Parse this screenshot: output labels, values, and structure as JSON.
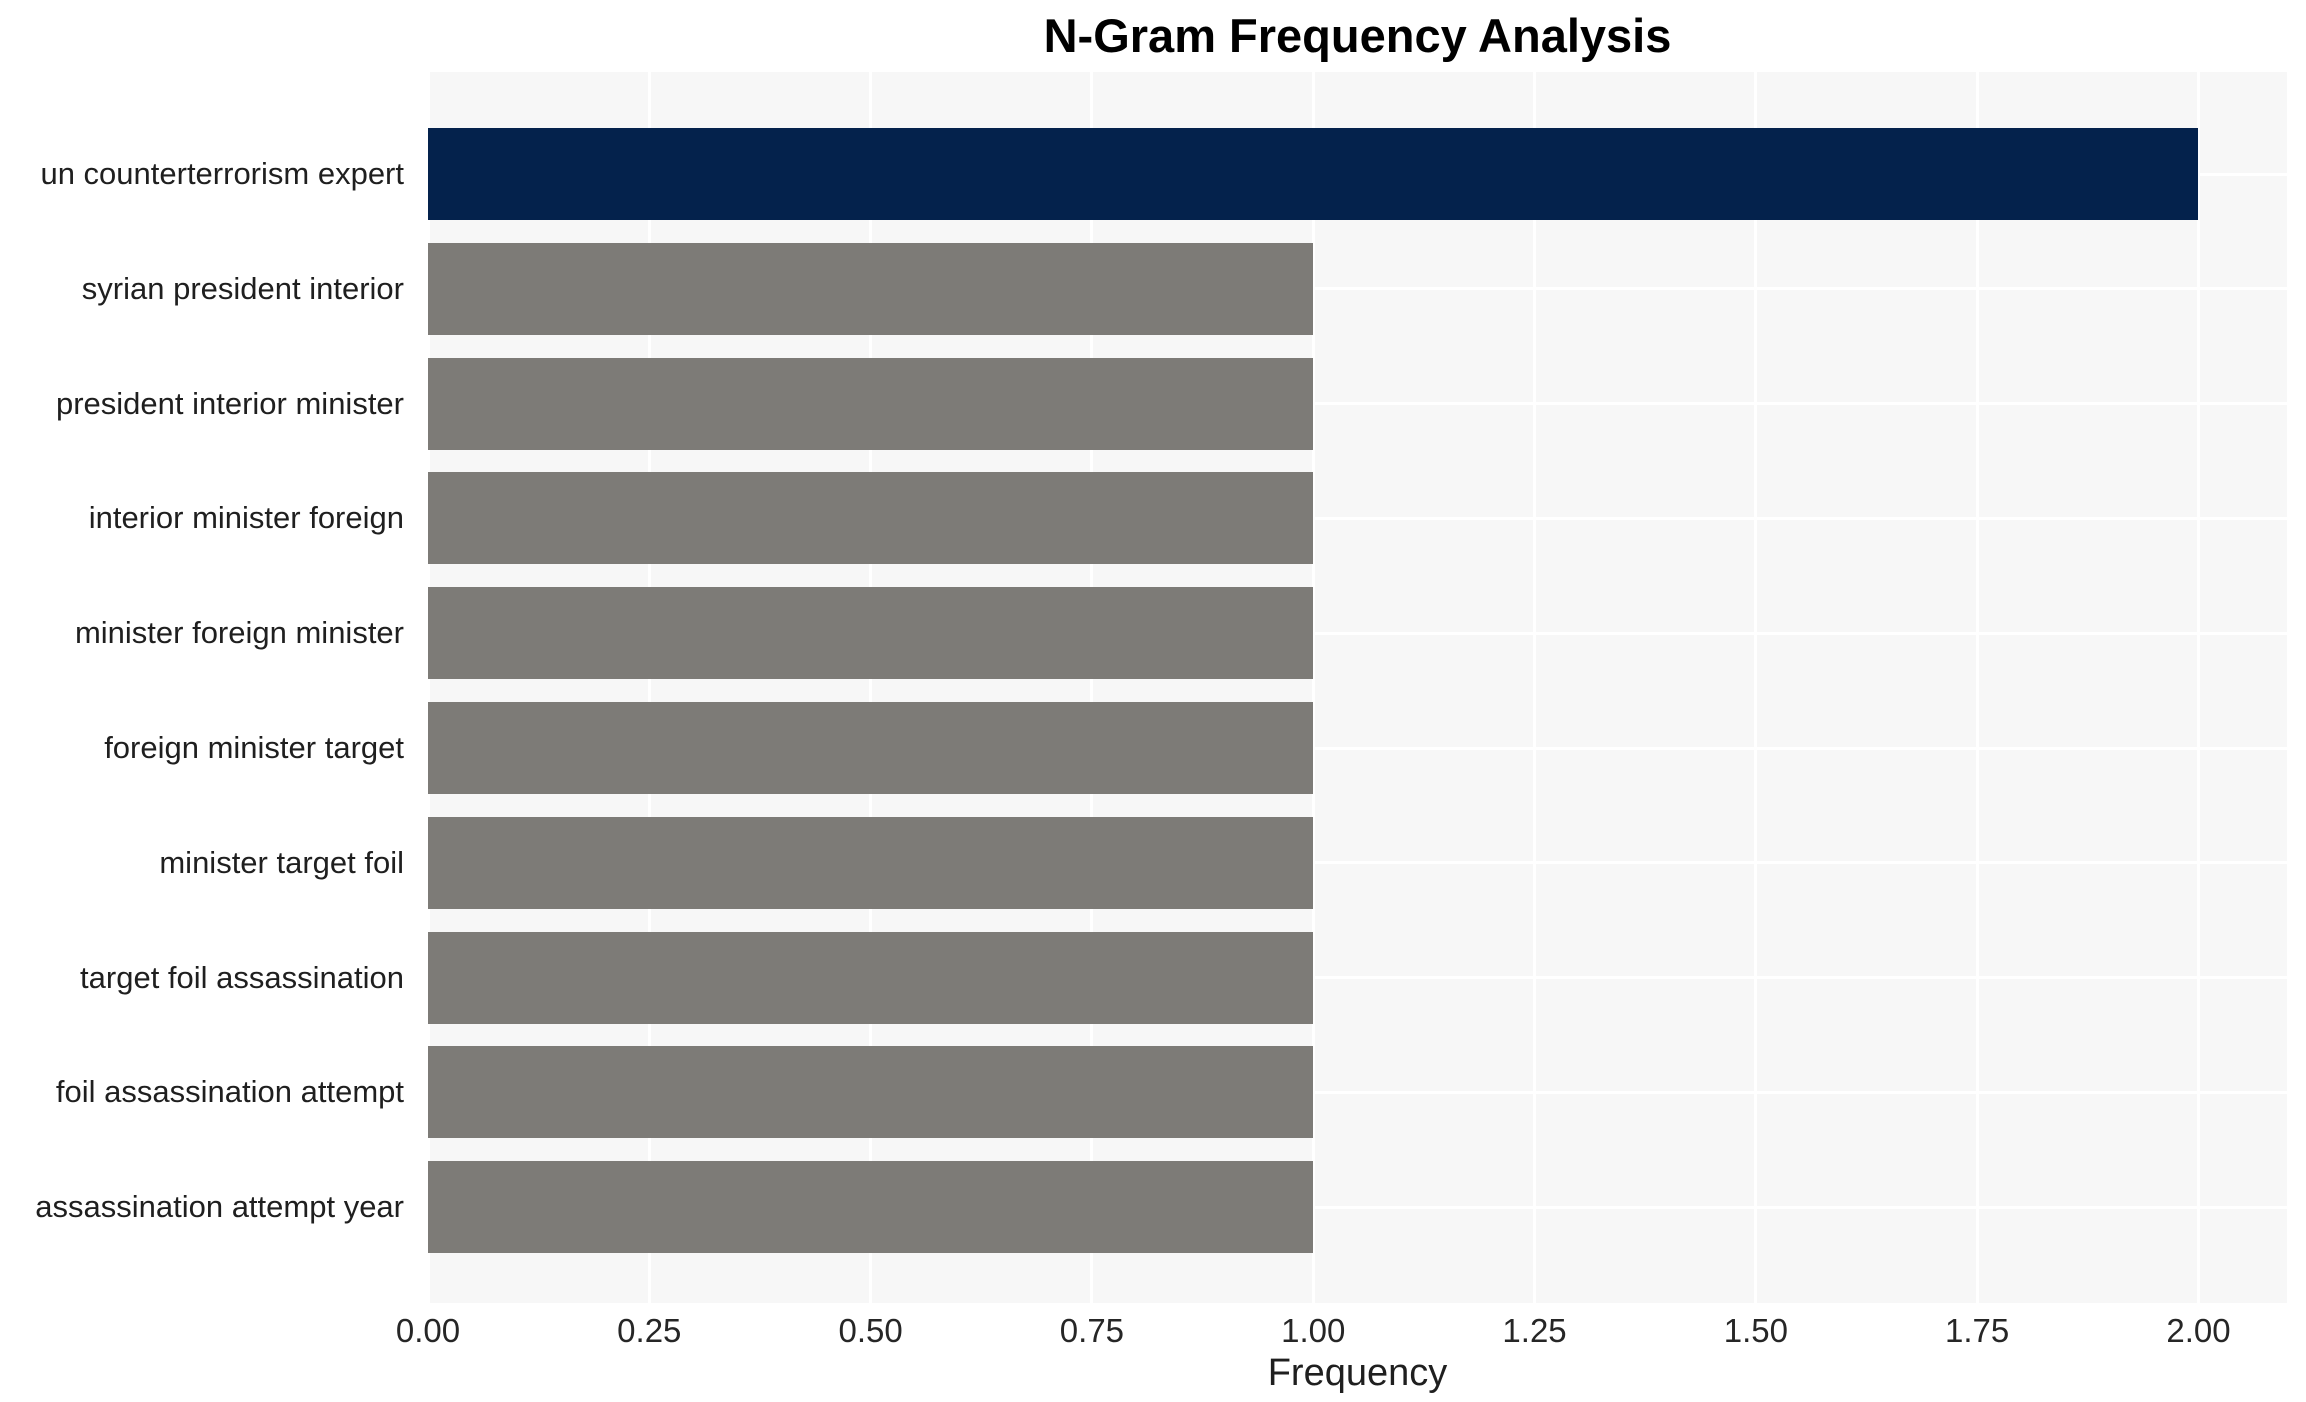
{
  "chart_data": {
    "type": "bar",
    "orientation": "horizontal",
    "title": "N-Gram Frequency Analysis",
    "xlabel": "Frequency",
    "ylabel": "",
    "categories": [
      "un counterterrorism expert",
      "syrian president interior",
      "president interior minister",
      "interior minister foreign",
      "minister foreign minister",
      "foreign minister target",
      "minister target foil",
      "target foil assassination",
      "foil assassination attempt",
      "assassination attempt year"
    ],
    "values": [
      2,
      1,
      1,
      1,
      1,
      1,
      1,
      1,
      1,
      1
    ],
    "xlim": [
      0,
      2.1
    ],
    "xticks": {
      "values": [
        0,
        0.25,
        0.5,
        0.75,
        1,
        1.25,
        1.5,
        1.75,
        2
      ],
      "labels": [
        "0.00",
        "0.25",
        "0.50",
        "0.75",
        "1.00",
        "1.25",
        "1.50",
        "1.75",
        "2.00"
      ]
    },
    "grid": true,
    "legend": false,
    "colors": {
      "highlight_bar": "#04224c",
      "default_bar": "#7d7b77",
      "plot_background": "#f7f7f7",
      "gridline": "#ffffff",
      "tick_text": "#262626",
      "label_text": "#1f1f1f",
      "title_text": "#000000"
    }
  }
}
